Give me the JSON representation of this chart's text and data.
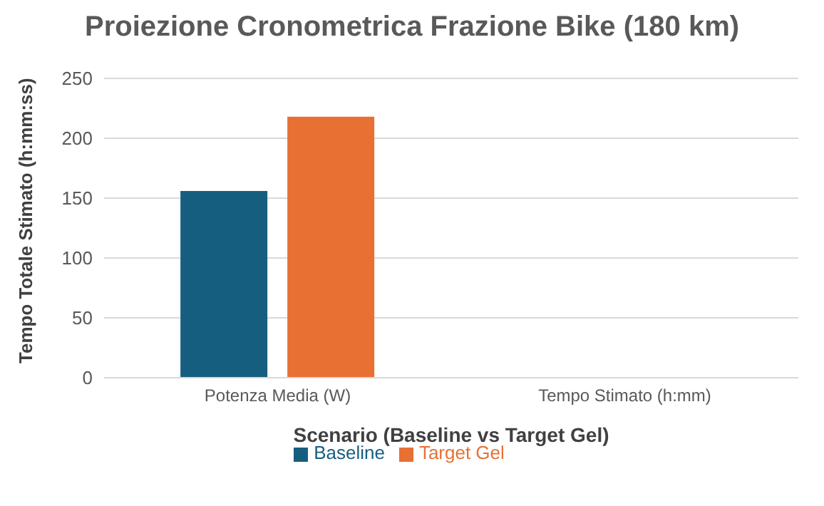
{
  "chart_data": {
    "type": "bar",
    "title": "Proiezione Cronometrica Frazione Bike (180 km)",
    "xlabel": "Scenario (Baseline vs Target Gel)",
    "ylabel": "Tempo Totale Stimato (h:mm:ss)",
    "categories": [
      "Potenza Media (W)",
      "Tempo Stimato (h:mm)"
    ],
    "series": [
      {
        "name": "Baseline",
        "color": "#165e80",
        "values": [
          156,
          null
        ]
      },
      {
        "name": "Target Gel",
        "color": "#e87033",
        "values": [
          218,
          null
        ]
      }
    ],
    "ylim": [
      0,
      250
    ],
    "yticks": [
      0,
      50,
      100,
      150,
      200,
      250
    ],
    "grid": "y",
    "legend": "bottom"
  }
}
